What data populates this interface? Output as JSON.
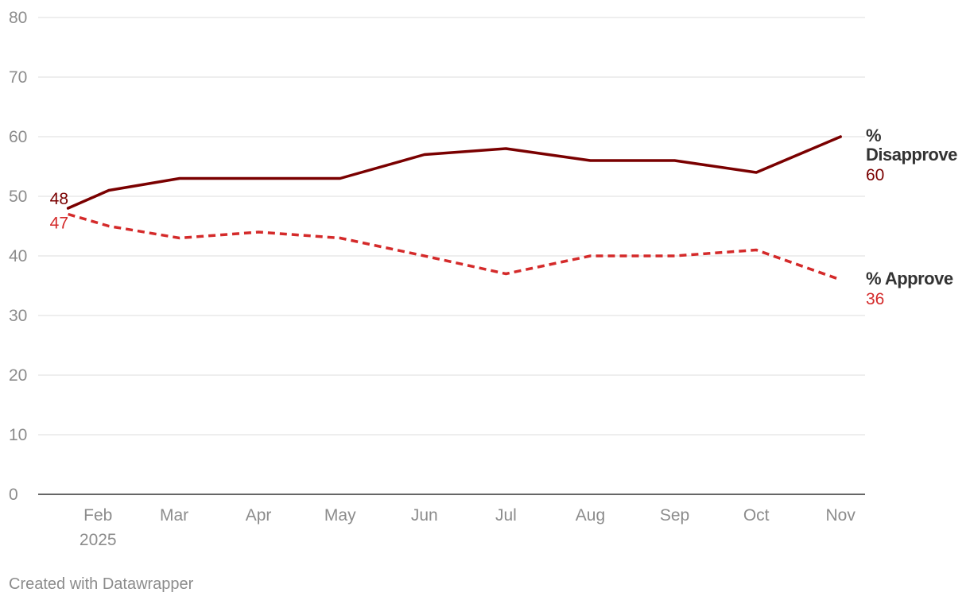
{
  "chart_data": {
    "type": "line",
    "x_dates": [
      "2025-01-21",
      "2025-02-05",
      "2025-03-03",
      "2025-04-01",
      "2025-05-01",
      "2025-06-01",
      "2025-07-01",
      "2025-08-01",
      "2025-09-01",
      "2025-10-01",
      "2025-11-01"
    ],
    "x_ticks": [
      {
        "label": "Feb",
        "sublabel": "2025",
        "date": "2025-02-01"
      },
      {
        "label": "Mar",
        "sublabel": "",
        "date": "2025-03-01"
      },
      {
        "label": "Apr",
        "sublabel": "",
        "date": "2025-04-01"
      },
      {
        "label": "May",
        "sublabel": "",
        "date": "2025-05-01"
      },
      {
        "label": "Jun",
        "sublabel": "",
        "date": "2025-06-01"
      },
      {
        "label": "Jul",
        "sublabel": "",
        "date": "2025-07-01"
      },
      {
        "label": "Aug",
        "sublabel": "",
        "date": "2025-08-01"
      },
      {
        "label": "Sep",
        "sublabel": "",
        "date": "2025-09-01"
      },
      {
        "label": "Oct",
        "sublabel": "",
        "date": "2025-10-01"
      },
      {
        "label": "Nov",
        "sublabel": "",
        "date": "2025-11-01"
      }
    ],
    "y_ticks": [
      "0",
      "10",
      "20",
      "30",
      "40",
      "50",
      "60",
      "70",
      "80"
    ],
    "ylim": [
      0,
      80
    ],
    "xlim": [
      "2025-01-10",
      "2025-11-10"
    ],
    "grid": true,
    "series": [
      {
        "name_lines": [
          "%",
          "Disapprove"
        ],
        "values": [
          48,
          51,
          53,
          53,
          53,
          57,
          58,
          56,
          56,
          54,
          60
        ],
        "color": "#7a0000",
        "dashed": false,
        "start_label": "48",
        "end_label": "60"
      },
      {
        "name_lines": [
          "% Approve"
        ],
        "values": [
          47,
          45,
          43,
          44,
          43,
          40,
          37,
          40,
          40,
          41,
          36
        ],
        "color": "#d42a2a",
        "dashed": true,
        "start_label": "47",
        "end_label": "36"
      }
    ]
  },
  "footer": {
    "credit": "Created with Datawrapper"
  }
}
